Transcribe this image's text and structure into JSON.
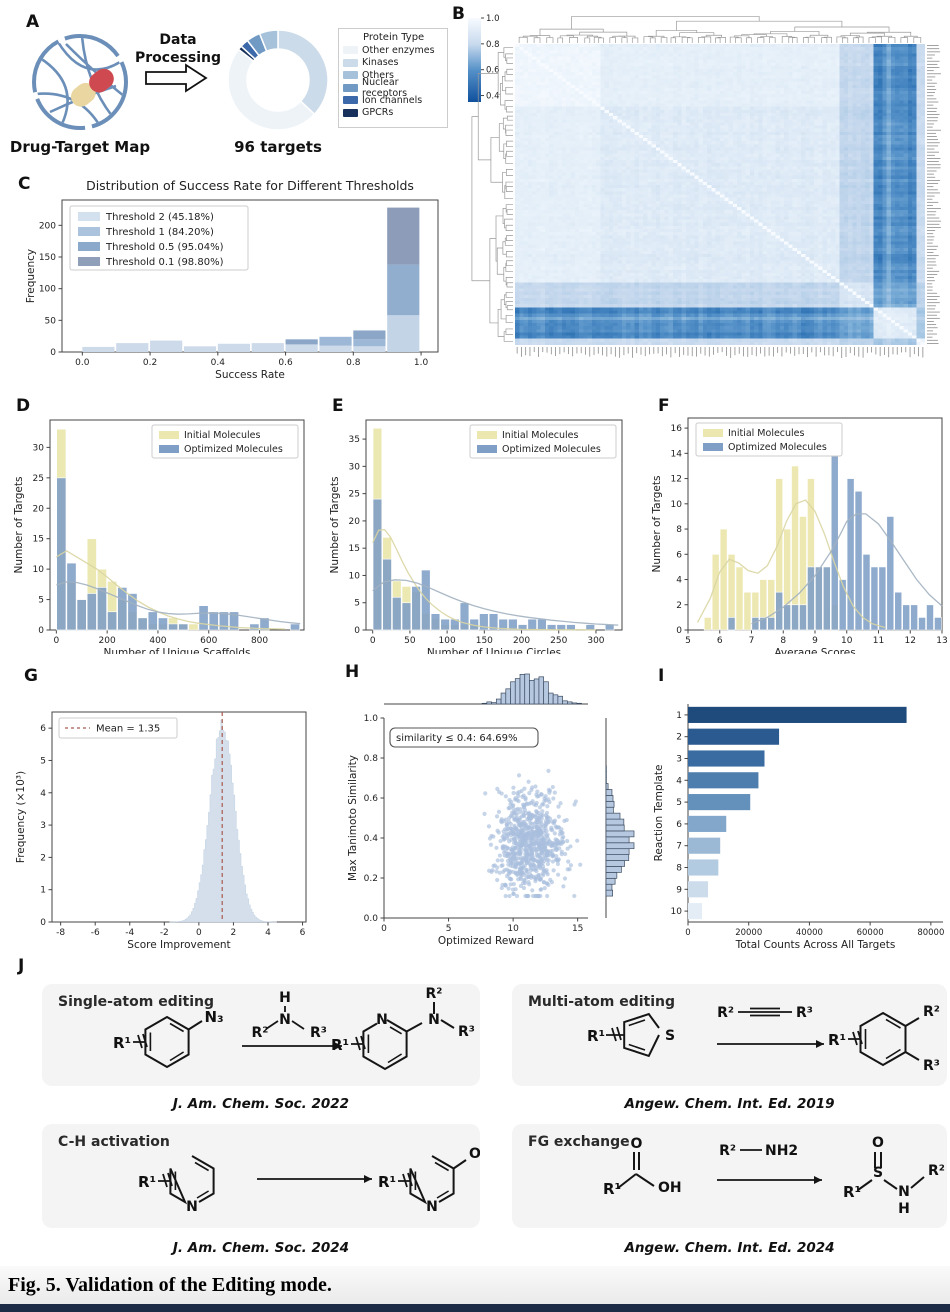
{
  "figure": {
    "caption": "Fig. 5. Validation of the Editing mode."
  },
  "panel_labels": {
    "A": "A",
    "B": "B",
    "C": "C",
    "D": "D",
    "E": "E",
    "F": "F",
    "G": "G",
    "H": "H",
    "I": "I",
    "J": "J"
  },
  "panelA": {
    "map_label": "Drug-Target Map",
    "arrow_label_line1": "Data",
    "arrow_label_line2": "Processing",
    "count_label": "96 targets",
    "legend_title": "Protein Type",
    "legend": [
      {
        "label": "Other enzymes",
        "color": "#eef3f8"
      },
      {
        "label": "Kinases",
        "color": "#cbdbe9"
      },
      {
        "label": "Others",
        "color": "#a6c1da"
      },
      {
        "label": "Nuclear receptors",
        "color": "#7099c4"
      },
      {
        "label": "Ion channels",
        "color": "#3c69a9"
      },
      {
        "label": "GPCRs",
        "color": "#17305c"
      }
    ],
    "donut_segments_clockwise_from_top": [
      {
        "name": "Kinases",
        "pct": 37,
        "color": "#cbdbe9"
      },
      {
        "name": "Other enzymes",
        "pct": 48.5,
        "color": "#eef3f8"
      },
      {
        "name": "GPCRs",
        "pct": 1.3,
        "color": "#17305c"
      },
      {
        "name": "Ion channels",
        "pct": 2.7,
        "color": "#3c69a9"
      },
      {
        "name": "Nuclear receptors",
        "pct": 4.5,
        "color": "#7099c4"
      },
      {
        "name": "Others",
        "pct": 6,
        "color": "#a6c1da"
      }
    ]
  },
  "chart_data": [
    {
      "panel": "B",
      "type": "heatmap",
      "n": 96,
      "value_range": [
        0.35,
        1.0
      ],
      "colorbar_ticks": [
        1.0,
        0.8,
        0.6,
        0.4
      ],
      "description": "96x96 pairwise target-similarity clustermap with row/column dendrograms; mostly high similarity (light blue), one dissimilar cluster producing dark vertical band near right columns and dark bottom rows; white diagonal",
      "groups": {
        "light_block": [
          0,
          20
        ],
        "main": [
          20,
          76
        ],
        "medium": [
          76,
          84
        ],
        "dark": [
          84,
          94
        ],
        "tail": [
          94,
          96
        ]
      }
    },
    {
      "panel": "C",
      "type": "bar",
      "title": "Distribution of Success Rate for Different Thresholds",
      "xlabel": "Success Rate",
      "ylabel": "Frequency",
      "xlim": [
        -0.06,
        1.05
      ],
      "ylim": [
        0,
        240
      ],
      "xticks": [
        0.0,
        0.2,
        0.4,
        0.6,
        0.8,
        1.0
      ],
      "xtick_dec": 1,
      "yticks": [
        0,
        50,
        100,
        150,
        200
      ],
      "bin_width": 0.095,
      "legend": [
        {
          "label": "Threshold 2 (45.18%)",
          "color": "#d3e0ee"
        },
        {
          "label": "Threshold 1 (84.20%)",
          "color": "#abc3dd"
        },
        {
          "label": "Threshold 0.5 (95.04%)",
          "color": "#8aa9cb"
        },
        {
          "label": "Threshold 0.1 (98.80%)",
          "color": "#8f9fba"
        }
      ],
      "bars": [
        {
          "x": 0.0,
          "segments": [
            [
              8,
              "#ccdae9"
            ]
          ]
        },
        {
          "x": 0.1,
          "segments": [
            [
              14,
              "#ccdae9"
            ]
          ]
        },
        {
          "x": 0.2,
          "segments": [
            [
              18,
              "#ccdae9"
            ]
          ]
        },
        {
          "x": 0.3,
          "segments": [
            [
              9,
              "#ccdae9"
            ]
          ]
        },
        {
          "x": 0.4,
          "segments": [
            [
              13,
              "#ccdae9"
            ]
          ]
        },
        {
          "x": 0.5,
          "segments": [
            [
              14,
              "#ccdae9"
            ]
          ]
        },
        {
          "x": 0.6,
          "segments": [
            [
              12,
              "#ccdae9"
            ],
            [
              20,
              "#8ba6c6"
            ]
          ]
        },
        {
          "x": 0.7,
          "segments": [
            [
              10,
              "#ccdae9"
            ],
            [
              24,
              "#9db8d6"
            ]
          ]
        },
        {
          "x": 0.8,
          "segments": [
            [
              9,
              "#ccdae9"
            ],
            [
              20,
              "#9db8d6"
            ],
            [
              34,
              "#8ba6c6"
            ]
          ]
        },
        {
          "x": 0.9,
          "segments": [
            [
              58,
              "#c3d4e7"
            ],
            [
              138,
              "#92aecf"
            ],
            [
              228,
              "#8d9cb9"
            ]
          ]
        }
      ]
    },
    {
      "panel": "D",
      "type": "histogram-overlay",
      "xlabel": "Number of Unique Scaffolds",
      "ylabel": "Number of Targets",
      "xlim": [
        -25,
        975
      ],
      "ylim": [
        0,
        34.5
      ],
      "xticks": [
        0,
        200,
        400,
        600,
        800
      ],
      "yticks": [
        0,
        5,
        10,
        15,
        20,
        25,
        30
      ],
      "x0": 0,
      "bin_width": 40,
      "legend_pos": "tr",
      "legend": [
        "Initial Molecules",
        "Optimized Molecules"
      ],
      "initial": [
        33,
        8,
        5,
        15,
        10,
        8,
        5,
        3,
        2,
        1,
        1,
        2,
        1,
        1,
        0,
        0,
        0,
        0,
        0,
        0,
        0,
        0,
        0,
        0
      ],
      "optimized": [
        25,
        11,
        5,
        6,
        7,
        3,
        7,
        6,
        2,
        3,
        2,
        1,
        1,
        0,
        4,
        3,
        3,
        3,
        0,
        1,
        2,
        0,
        0,
        1
      ],
      "kde_initial": [
        [
          0,
          12
        ],
        [
          40,
          13
        ],
        [
          80,
          12
        ],
        [
          120,
          11
        ],
        [
          160,
          10
        ],
        [
          200,
          8.7
        ],
        [
          240,
          7.3
        ],
        [
          280,
          6
        ],
        [
          320,
          4.8
        ],
        [
          360,
          3.8
        ],
        [
          400,
          3
        ],
        [
          440,
          2.3
        ],
        [
          480,
          1.8
        ],
        [
          520,
          1.4
        ],
        [
          560,
          1.1
        ],
        [
          640,
          0.7
        ],
        [
          720,
          0.4
        ],
        [
          800,
          0.25
        ],
        [
          900,
          0.15
        ]
      ],
      "kde_optimized": [
        [
          0,
          7.4
        ],
        [
          40,
          7.9
        ],
        [
          80,
          7.8
        ],
        [
          120,
          7.4
        ],
        [
          160,
          6.8
        ],
        [
          200,
          6.1
        ],
        [
          240,
          5.4
        ],
        [
          280,
          4.7
        ],
        [
          320,
          4
        ],
        [
          360,
          3.4
        ],
        [
          400,
          2.95
        ],
        [
          440,
          2.7
        ],
        [
          480,
          2.6
        ],
        [
          520,
          2.65
        ],
        [
          560,
          2.75
        ],
        [
          600,
          2.8
        ],
        [
          640,
          2.75
        ],
        [
          680,
          2.6
        ],
        [
          720,
          2.4
        ],
        [
          760,
          2.15
        ],
        [
          800,
          1.9
        ],
        [
          840,
          1.65
        ],
        [
          880,
          1.4
        ],
        [
          920,
          1.2
        ],
        [
          960,
          1.05
        ]
      ]
    },
    {
      "panel": "E",
      "type": "histogram-overlay",
      "xlabel": "Number of Unique Circles",
      "ylabel": "Number of Targets",
      "xlim": [
        -9,
        335
      ],
      "ylim": [
        0,
        38.5
      ],
      "xticks": [
        0,
        50,
        100,
        150,
        200,
        250,
        300
      ],
      "yticks": [
        0,
        5,
        10,
        15,
        20,
        25,
        30,
        35
      ],
      "x0": 0,
      "bin_width": 13,
      "legend_pos": "tr",
      "legend": [
        "Initial Molecules",
        "Optimized Molecules"
      ],
      "initial": [
        37,
        17,
        9,
        8,
        7,
        3,
        2,
        1,
        1,
        1,
        1,
        0,
        0,
        0,
        0,
        0,
        0,
        0,
        0,
        0,
        0,
        0,
        0,
        0,
        0
      ],
      "optimized": [
        24,
        13,
        6,
        5,
        8,
        11,
        3,
        2,
        2,
        5,
        2,
        3,
        3,
        2,
        2,
        1,
        2,
        2,
        1,
        1,
        1,
        0,
        1,
        0,
        1
      ],
      "kde_initial": [
        [
          0,
          16
        ],
        [
          8,
          18.3
        ],
        [
          16,
          18.4
        ],
        [
          24,
          17
        ],
        [
          32,
          14.8
        ],
        [
          40,
          12.5
        ],
        [
          48,
          10.4
        ],
        [
          56,
          8.6
        ],
        [
          64,
          7
        ],
        [
          72,
          5.7
        ],
        [
          80,
          4.6
        ],
        [
          90,
          3.5
        ],
        [
          100,
          2.6
        ],
        [
          110,
          1.9
        ],
        [
          120,
          1.4
        ],
        [
          135,
          0.9
        ],
        [
          150,
          0.55
        ],
        [
          170,
          0.3
        ],
        [
          200,
          0.12
        ],
        [
          240,
          0.05
        ],
        [
          300,
          0.02
        ]
      ],
      "kde_optimized": [
        [
          0,
          7.2
        ],
        [
          15,
          8.8
        ],
        [
          30,
          9.2
        ],
        [
          45,
          9.1
        ],
        [
          60,
          8.6
        ],
        [
          75,
          7.8
        ],
        [
          90,
          6.9
        ],
        [
          105,
          6
        ],
        [
          120,
          5.2
        ],
        [
          135,
          4.5
        ],
        [
          150,
          3.9
        ],
        [
          165,
          3.4
        ],
        [
          180,
          2.95
        ],
        [
          195,
          2.6
        ],
        [
          210,
          2.3
        ],
        [
          225,
          2.05
        ],
        [
          240,
          1.8
        ],
        [
          255,
          1.6
        ],
        [
          270,
          1.4
        ],
        [
          285,
          1.25
        ],
        [
          300,
          1.1
        ],
        [
          315,
          1
        ],
        [
          330,
          0.9
        ]
      ]
    },
    {
      "panel": "F",
      "type": "histogram-overlay",
      "xlabel": "Average Scores",
      "ylabel": "Number of Targets",
      "xlim": [
        5,
        13
      ],
      "ylim": [
        0,
        16.8
      ],
      "xticks": [
        5,
        6,
        7,
        8,
        9,
        10,
        11,
        12,
        13
      ],
      "yticks": [
        0,
        2,
        4,
        6,
        8,
        10,
        12,
        14,
        16
      ],
      "x0": 5.25,
      "bin_width": 0.25,
      "legend_pos": "tl",
      "legend": [
        "Initial Molecules",
        "Optimized Molecules"
      ],
      "initial": [
        0,
        1,
        6,
        8,
        6,
        5,
        3,
        3,
        4,
        4,
        12,
        8,
        13,
        9,
        12,
        5,
        5,
        2,
        0,
        0,
        0,
        0,
        0,
        0,
        0,
        0,
        0,
        0,
        0,
        0,
        0
      ],
      "optimized": [
        0,
        0,
        0,
        0,
        1,
        0,
        0,
        1,
        1,
        1,
        3,
        2,
        2,
        2,
        5,
        5,
        5,
        16,
        4,
        12,
        11,
        6,
        5,
        5,
        9,
        3,
        2,
        2,
        1,
        2,
        1
      ],
      "kde_initial": [
        [
          5.3,
          0.6
        ],
        [
          5.7,
          2.5
        ],
        [
          6,
          4.6
        ],
        [
          6.3,
          5.6
        ],
        [
          6.6,
          5.3
        ],
        [
          6.9,
          4.7
        ],
        [
          7.2,
          4.5
        ],
        [
          7.5,
          5.1
        ],
        [
          7.8,
          6.6
        ],
        [
          8.1,
          8.6
        ],
        [
          8.4,
          10
        ],
        [
          8.7,
          10.3
        ],
        [
          9,
          9.4
        ],
        [
          9.3,
          7.6
        ],
        [
          9.6,
          5.4
        ],
        [
          9.9,
          3.4
        ],
        [
          10.2,
          1.9
        ],
        [
          10.5,
          1
        ],
        [
          10.8,
          0.5
        ],
        [
          11.2,
          0.2
        ]
      ],
      "kde_optimized": [
        [
          7,
          0.5
        ],
        [
          7.5,
          1
        ],
        [
          8,
          1.8
        ],
        [
          8.5,
          2.9
        ],
        [
          9,
          4.3
        ],
        [
          9.5,
          6.2
        ],
        [
          9.8,
          7.6
        ],
        [
          10,
          8.6
        ],
        [
          10.3,
          9.2
        ],
        [
          10.6,
          9.2
        ],
        [
          11,
          8.4
        ],
        [
          11.4,
          7
        ],
        [
          11.8,
          5.5
        ],
        [
          12.2,
          4
        ],
        [
          12.6,
          2.8
        ],
        [
          13,
          1.9
        ]
      ]
    },
    {
      "panel": "G",
      "type": "histogram",
      "xlabel": "Score Improvement",
      "ylabel": "Frequency (×10³)",
      "xlim": [
        -8.5,
        6.2
      ],
      "ylim": [
        0,
        6.5
      ],
      "xticks": [
        -8,
        -6,
        -4,
        -2,
        0,
        2,
        4,
        6
      ],
      "yticks": [
        0,
        1,
        2,
        3,
        4,
        5,
        6
      ],
      "mean": 1.35,
      "mean_label": "Mean = 1.35",
      "mean_line_color": "#a85a50",
      "dist": {
        "shape": "gaussian",
        "mean": 1.35,
        "sd": 0.72,
        "peak": 6.05,
        "bin_width": 0.09,
        "range": [
          -1.7,
          4.5
        ]
      },
      "fill": "#d4dfeb"
    },
    {
      "panel": "H",
      "type": "scatter-marginal",
      "xlabel": "Optimized Reward",
      "ylabel": "Max Tanimoto Similarity",
      "xlim": [
        0,
        15.8
      ],
      "ylim": [
        0,
        1.0
      ],
      "xticks": [
        0,
        5,
        10,
        15
      ],
      "yticks": [
        0.0,
        0.2,
        0.4,
        0.6,
        0.8,
        1.0
      ],
      "ytick_dec": 1,
      "annotation": "similarity ≤ 0.4: 64.69%",
      "n_points": 780,
      "x_dist": {
        "mean": 11.2,
        "sd": 1.35,
        "min": 6.6,
        "max": 15.2
      },
      "y_dist": {
        "mean": 0.375,
        "sd": 0.125,
        "min": 0.11,
        "max": 0.8
      },
      "outlier": [
        10.6,
        0.88
      ],
      "point_color": "#a9bedd",
      "hist_fill": "#b6c8e0",
      "hist_edge": "#3c4c60"
    },
    {
      "panel": "I",
      "type": "hbar",
      "xlabel": "Total Counts Across All Targets",
      "ylabel": "Reaction Template",
      "categories": [
        "1",
        "2",
        "3",
        "4",
        "5",
        "6",
        "7",
        "8",
        "9",
        "10"
      ],
      "values": [
        72000,
        30000,
        25200,
        23200,
        20500,
        12600,
        10600,
        10000,
        6600,
        4600
      ],
      "xticks": [
        0,
        20000,
        40000,
        60000,
        80000
      ],
      "xlim": [
        0,
        84000
      ],
      "colors": [
        "#1f4a7c",
        "#2a5a90",
        "#3a6ba1",
        "#4e7eae",
        "#6491bb",
        "#82a7ca",
        "#9bb9d5",
        "#b3cbe1",
        "#cddceb",
        "#e4edf6"
      ]
    }
  ],
  "panelJ": {
    "cards": [
      {
        "title": "Single-atom editing",
        "citation": "J. Am. Chem. Soc. 2022",
        "labels": {
          "r1": "R¹",
          "r2": "R²",
          "r3": "R³",
          "n3": "N₃",
          "n": "N",
          "nexo": "N",
          "h": "H"
        }
      },
      {
        "title": "Multi-atom editing",
        "citation": "Angew. Chem. Int. Ed. 2019",
        "labels": {
          "r1": "R¹",
          "r2": "R²",
          "r3": "R³",
          "s": "S"
        }
      },
      {
        "title": "C-H activation",
        "citation": "J. Am. Chem. Soc. 2024",
        "labels": {
          "r1": "R¹",
          "n": "N",
          "n2": "N",
          "oh": "OH"
        }
      },
      {
        "title": "FG exchange",
        "citation": "Angew. Chem. Int. Ed. 2024",
        "labels": {
          "r1": "R¹",
          "r2": "R²",
          "o": "O",
          "oh": "OH",
          "s": "S",
          "n": "N",
          "h": "H",
          "nh2": "NH2",
          "o2": "O"
        }
      }
    ]
  }
}
